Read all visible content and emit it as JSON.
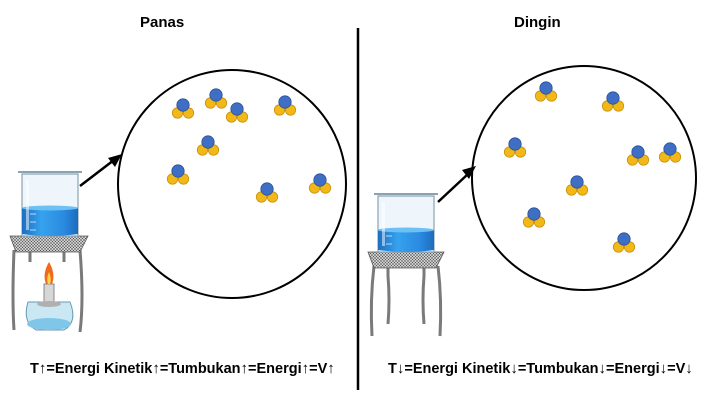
{
  "panels": {
    "hot": {
      "title": "Panas"
    },
    "cold": {
      "title": "Dingin"
    }
  },
  "equations": {
    "hot": {
      "t1": "T",
      "a1": "↑",
      "t2": "=Energi Kinetik",
      "a2": "↑",
      "t3": " =Tumbukan",
      "a3": "↑",
      "t4": " =Energi ",
      "a4": "↑",
      "t5": " =V",
      "a5": "↑"
    },
    "cold": {
      "t1": "T",
      "a1": "↓",
      "t2": "=Energi Kinetik ",
      "a2": "↓",
      "t3": "=Tumbukan",
      "a3": "↓",
      "t4": " =Energi ",
      "a4": "↓",
      "t5": "=V",
      "a5": "↓"
    }
  },
  "colors": {
    "atom_blue": "#3f6fc4",
    "atom_yellow": "#f2b818",
    "liquid_blue": "#2f93e6",
    "flame_orange": "#f06a1c",
    "stand_gray": "#777777"
  }
}
